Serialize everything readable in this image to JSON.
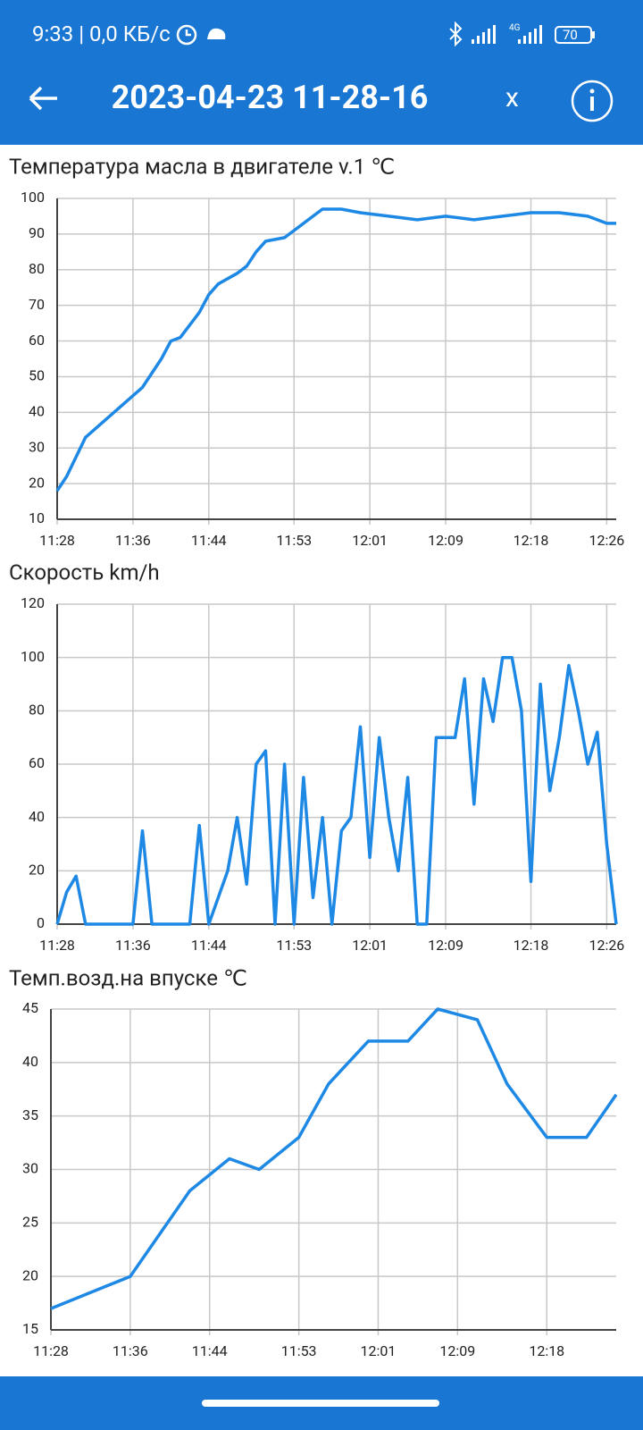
{
  "status_bar": {
    "time_and_speed": "9:33 | 0,0 КБ/с",
    "battery": "70"
  },
  "header": {
    "title": "2023-04-23 11-28-16",
    "close": "x"
  },
  "chart_data": [
    {
      "type": "line",
      "title": "Температура масла в двигателе v.1  ℃",
      "grid": true,
      "x": [
        "11:28",
        "11:29",
        "11:31",
        "11:37",
        "11:39",
        "11:40",
        "11:41",
        "11:43",
        "11:44",
        "11:45",
        "11:47",
        "11:48",
        "11:49",
        "11:50",
        "11:52",
        "11:53",
        "11:54",
        "11:55",
        "11:56",
        "11:58",
        "12:00",
        "12:03",
        "12:06",
        "12:09",
        "12:12",
        "12:15",
        "12:18",
        "12:21",
        "12:24",
        "12:26",
        "12:27"
      ],
      "series": [
        {
          "color": "#1e88e5",
          "values": [
            18,
            22,
            33,
            47,
            55,
            60,
            61,
            68,
            73,
            76,
            79,
            81,
            85,
            88,
            89,
            91,
            93,
            95,
            97,
            97,
            96,
            95,
            94,
            95,
            94,
            95,
            96,
            96,
            95,
            93,
            93
          ]
        }
      ],
      "xlim": [
        "11:28",
        "12:27"
      ],
      "xticks": [
        "11:28",
        "11:36",
        "11:44",
        "11:53",
        "12:01",
        "12:09",
        "12:18",
        "12:26"
      ],
      "ylim": [
        10,
        100
      ],
      "yticks": [
        10,
        20,
        30,
        40,
        50,
        60,
        70,
        80,
        90,
        100
      ]
    },
    {
      "type": "line",
      "title": "Скорость  km/h",
      "grid": true,
      "x": [
        "11:28",
        "11:29",
        "11:30",
        "11:31",
        "11:36",
        "11:37",
        "11:38",
        "11:42",
        "11:43",
        "11:44",
        "11:45",
        "11:46",
        "11:47",
        "11:48",
        "11:49",
        "11:50",
        "11:51",
        "11:52",
        "11:53",
        "11:54",
        "11:55",
        "11:56",
        "11:57",
        "11:58",
        "11:59",
        "12:00",
        "12:01",
        "12:02",
        "12:03",
        "12:04",
        "12:05",
        "12:06",
        "12:07",
        "12:08",
        "12:10",
        "12:11",
        "12:12",
        "12:13",
        "12:14",
        "12:15",
        "12:16",
        "12:17",
        "12:18",
        "12:19",
        "12:20",
        "12:21",
        "12:22",
        "12:23",
        "12:24",
        "12:25",
        "12:26",
        "12:27"
      ],
      "series": [
        {
          "color": "#1e88e5",
          "values": [
            0,
            12,
            18,
            0,
            0,
            35,
            0,
            0,
            37,
            0,
            10,
            20,
            40,
            15,
            60,
            65,
            0,
            60,
            0,
            55,
            10,
            40,
            0,
            35,
            40,
            74,
            25,
            70,
            40,
            20,
            55,
            0,
            0,
            70,
            70,
            92,
            45,
            92,
            76,
            100,
            100,
            80,
            16,
            90,
            50,
            70,
            97,
            80,
            60,
            72,
            30,
            0
          ]
        }
      ],
      "xlim": [
        "11:28",
        "12:27"
      ],
      "xticks": [
        "11:28",
        "11:36",
        "11:44",
        "11:53",
        "12:01",
        "12:09",
        "12:18",
        "12:26"
      ],
      "ylim": [
        0,
        120
      ],
      "yticks": [
        0,
        20,
        40,
        60,
        80,
        100,
        120
      ]
    },
    {
      "type": "line",
      "title": "Темп.возд.на впуске  ℃",
      "grid": true,
      "x": [
        "11:28",
        "11:36",
        "11:42",
        "11:46",
        "11:49",
        "11:53",
        "11:56",
        "12:00",
        "12:04",
        "12:07",
        "12:11",
        "12:14",
        "12:18",
        "12:22",
        "12:25"
      ],
      "series": [
        {
          "color": "#1e88e5",
          "values": [
            17,
            20,
            28,
            31,
            30,
            33,
            38,
            42,
            42,
            45,
            44,
            38,
            33,
            33,
            37
          ]
        }
      ],
      "xlim": [
        "11:28",
        "12:25"
      ],
      "xticks": [
        "11:28",
        "11:36",
        "11:44",
        "11:53",
        "12:01",
        "12:09",
        "12:18"
      ],
      "ylim": [
        15,
        45
      ],
      "yticks": [
        15,
        20,
        25,
        30,
        35,
        40,
        45
      ]
    }
  ]
}
